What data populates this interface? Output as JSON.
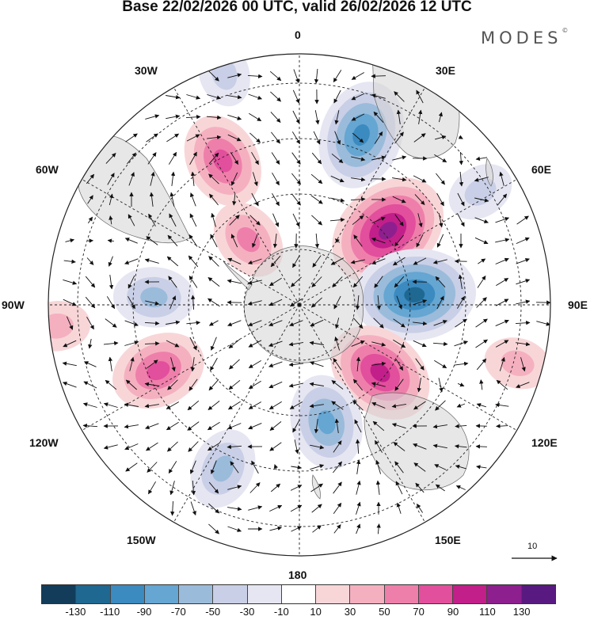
{
  "title": "Base 22/02/2026 00 UTC, valid 26/02/2026 12 UTC",
  "brand": "MODES",
  "brand_mark": "©",
  "longitude_labels": {
    "top": "0",
    "bottom": "180",
    "left": "90W",
    "right": "90E",
    "nw1": "30W",
    "nw2": "60W",
    "sw1": "120W",
    "sw2": "150W",
    "ne1": "30E",
    "ne2": "60E",
    "se1": "120E",
    "se2": "150E"
  },
  "reference_vector": "10",
  "colorbar": {
    "colors": [
      "#123c5a",
      "#1e6892",
      "#3b8ac0",
      "#65a6d2",
      "#9bbbdb",
      "#c9cfe6",
      "#e6e6f2",
      "#ffffff",
      "#f8d6d8",
      "#f5b0c0",
      "#ee7faa",
      "#e24f9c",
      "#c21f8a",
      "#8e1f8e",
      "#581a80"
    ],
    "ticks": [
      "-130",
      "-110",
      "-90",
      "-70",
      "-50",
      "-30",
      "-10",
      "10",
      "30",
      "50",
      "70",
      "90",
      "110",
      "130"
    ]
  },
  "anomalies": [
    {
      "lon": 20,
      "r": 0.72,
      "value": -90
    },
    {
      "lon": 50,
      "r": 0.46,
      "value": 110
    },
    {
      "lon": 85,
      "r": 0.46,
      "value": -110
    },
    {
      "lon": 130,
      "r": 0.42,
      "value": 90
    },
    {
      "lon": 167,
      "r": 0.48,
      "value": -70
    },
    {
      "lon": -155,
      "r": 0.72,
      "value": -50
    },
    {
      "lon": -115,
      "r": 0.62,
      "value": 70
    },
    {
      "lon": -87,
      "r": 0.58,
      "value": -50
    },
    {
      "lon": -28,
      "r": 0.65,
      "value": 70
    },
    {
      "lon": -38,
      "r": 0.33,
      "value": 50
    },
    {
      "lon": 58,
      "r": 0.85,
      "value": -30
    },
    {
      "lon": -18,
      "r": 0.97,
      "value": -30
    },
    {
      "lon": 105,
      "r": 0.9,
      "value": 30
    },
    {
      "lon": -95,
      "r": 0.97,
      "value": 30
    }
  ]
}
